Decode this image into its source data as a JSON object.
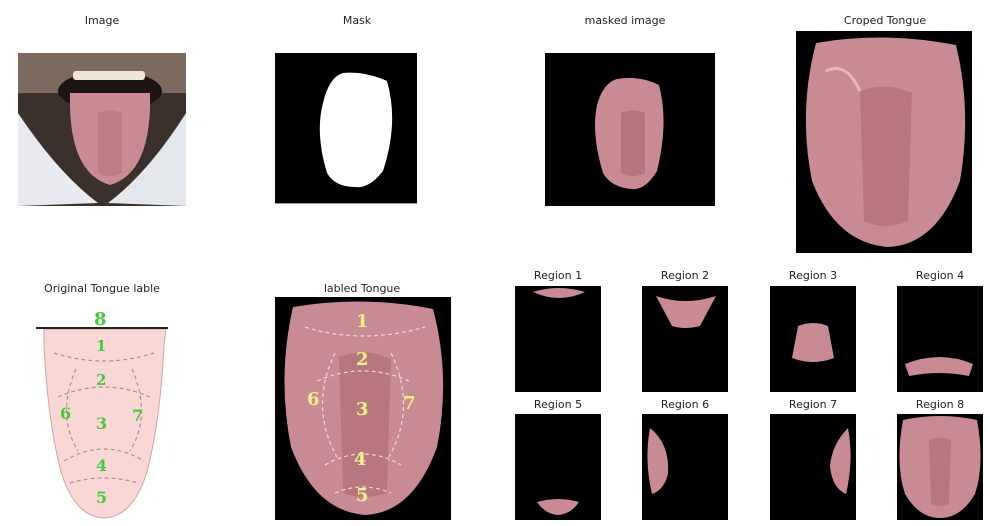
{
  "titles": {
    "image": "Image",
    "mask": "Mask",
    "masked": "masked image",
    "cropped": "Croped Tongue",
    "original_label": "Original Tongue lable",
    "labeled": "labled Tongue"
  },
  "regions": [
    {
      "title": "Region 1"
    },
    {
      "title": "Region 2"
    },
    {
      "title": "Region 3"
    },
    {
      "title": "Region 4"
    },
    {
      "title": "Region 5"
    },
    {
      "title": "Region 6"
    },
    {
      "title": "Region 7"
    },
    {
      "title": "Region 8"
    }
  ],
  "diagram_labels": [
    "1",
    "2",
    "3",
    "4",
    "5",
    "6",
    "7",
    "8"
  ],
  "colors": {
    "tongue": "#c98b93",
    "tongue_dark": "#a9686f",
    "diagram_fill": "#f9d7d4",
    "label_green": "#47c83e",
    "label_yellow": "#f4f08a"
  }
}
